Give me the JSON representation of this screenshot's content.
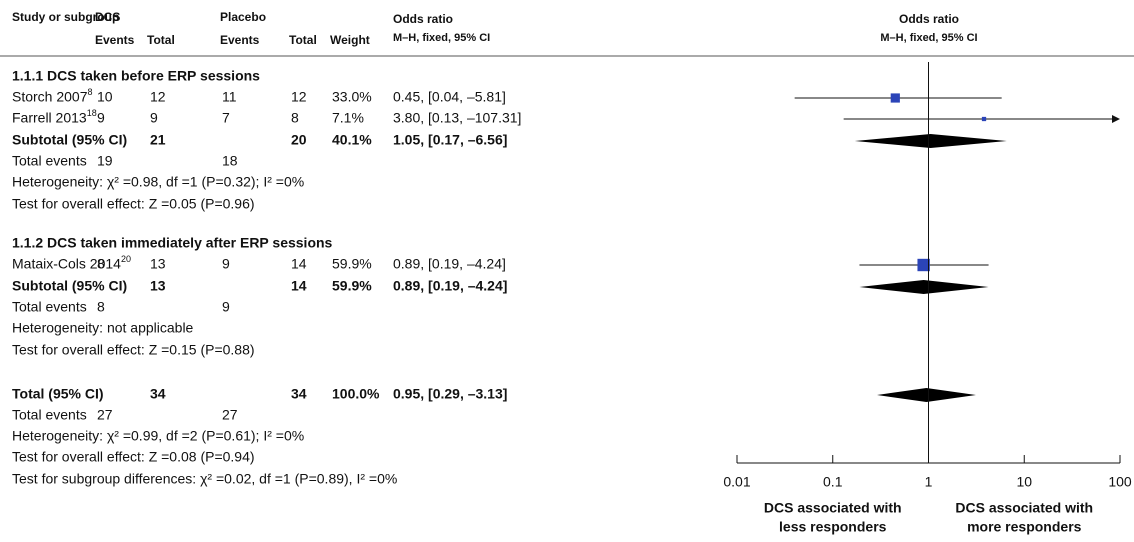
{
  "chart_data": {
    "type": "forest",
    "header": {
      "study": "Study or subgroup",
      "group1": "DCS",
      "group2": "Placebo",
      "events": "Events",
      "total": "Total",
      "weight": "Weight",
      "effect": "Odds ratio",
      "method": "M–H, fixed, 95% CI",
      "plot_title": "Odds ratio",
      "plot_method": "M–H, fixed, 95% CI"
    },
    "groups": [
      {
        "title": "1.1.1 DCS taken before ERP sessions",
        "studies": [
          {
            "study": "Storch 2007",
            "ref": "8",
            "e1": 10,
            "n1": 12,
            "e2": 11,
            "n2": 12,
            "weight": {
              "value": 33.0,
              "label": "33.0%"
            },
            "or": 0.45,
            "lo": 0.04,
            "hi": 5.81,
            "ci_label": "0.45, [0.04, –5.81]"
          },
          {
            "study": "Farrell 2013",
            "ref": "18",
            "e1": 9,
            "n1": 9,
            "e2": 7,
            "n2": 8,
            "weight": {
              "value": 7.1,
              "label": "7.1%"
            },
            "or": 3.8,
            "lo": 0.13,
            "hi": 107.31,
            "ci_label": "3.80, [0.13, –107.31]"
          }
        ],
        "subtotal": {
          "label": "Subtotal (95% CI)",
          "n1": 21,
          "n2": 20,
          "weight": {
            "value": 40.1,
            "label": "40.1%"
          },
          "or": 1.05,
          "lo": 0.17,
          "hi": 6.56,
          "ci_label": "1.05, [0.17, –6.56]"
        },
        "total_events": {
          "label": "Total events",
          "e1": 19,
          "e2": 18
        },
        "heterogeneity": "Heterogeneity: χ² =0.98, df =1 (P=0.32); I² =0%",
        "overall_effect": "Test for overall effect: Z =0.05 (P=0.96)"
      },
      {
        "title": "1.1.2 DCS taken immediately after ERP sessions",
        "studies": [
          {
            "study": "Mataix-Cols 2014",
            "ref": "20",
            "e1": 8,
            "n1": 13,
            "e2": 9,
            "n2": 14,
            "weight": {
              "value": 59.9,
              "label": "59.9%"
            },
            "or": 0.89,
            "lo": 0.19,
            "hi": 4.24,
            "ci_label": "0.89, [0.19, –4.24]"
          }
        ],
        "subtotal": {
          "label": "Subtotal (95% CI)",
          "n1": 13,
          "n2": 14,
          "weight": {
            "value": 59.9,
            "label": "59.9%"
          },
          "or": 0.89,
          "lo": 0.19,
          "hi": 4.24,
          "ci_label": "0.89, [0.19, –4.24]"
        },
        "total_events": {
          "label": "Total events",
          "e1": 8,
          "e2": 9
        },
        "heterogeneity": "Heterogeneity: not applicable",
        "overall_effect": "Test for overall effect: Z =0.15 (P=0.88)"
      }
    ],
    "total": {
      "label": "Total (95% CI)",
      "n1": 34,
      "n2": 34,
      "weight": {
        "value": 100.0,
        "label": "100.0%"
      },
      "or": 0.95,
      "lo": 0.29,
      "hi": 3.13,
      "ci_label": "0.95, [0.29, –3.13]",
      "total_events": {
        "label": "Total events",
        "e1": 27,
        "e2": 27
      },
      "heterogeneity": "Heterogeneity: χ² =0.99, df =2 (P=0.61); I² =0%",
      "overall_effect": "Test for overall effect: Z =0.08 (P=0.94)",
      "subgroup_differences": "Test for subgroup differences: χ² =0.02, df =1 (P=0.89), I² =0%"
    },
    "log_x": true,
    "xlim": [
      0.01,
      100
    ],
    "xticks": [
      0.01,
      0.1,
      1,
      10,
      100
    ],
    "favors_left": [
      "DCS associated with",
      "less responders"
    ],
    "favors_right": [
      "DCS associated with",
      "more responders"
    ],
    "square_color": "#2b44b8",
    "diamond_color": "#000000"
  }
}
